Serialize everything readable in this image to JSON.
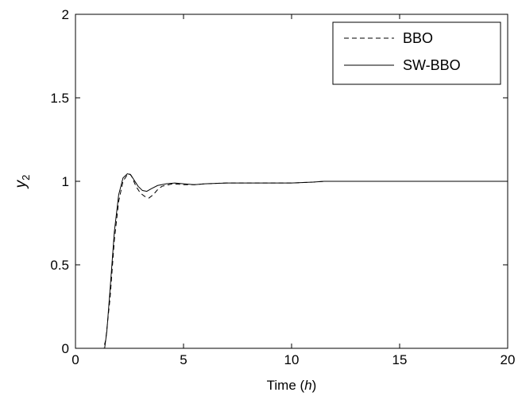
{
  "chart_data": {
    "type": "line",
    "title": "",
    "xlabel": "Time (h)",
    "xlabel_main": "Time (",
    "xlabel_var": "h",
    "xlabel_close": ")",
    "ylabel": "y2",
    "ylabel_var": "y",
    "ylabel_sub": "2",
    "xlim": [
      0,
      20
    ],
    "ylim": [
      0,
      2
    ],
    "xticks": [
      0,
      5,
      10,
      15,
      20
    ],
    "xtick_labels": [
      "0",
      "5",
      "10",
      "15",
      "20"
    ],
    "yticks": [
      0,
      0.5,
      1,
      1.5,
      2
    ],
    "ytick_labels": [
      "0",
      "0.5",
      "1",
      "1.5",
      "2"
    ],
    "grid": false,
    "legend_position": "top-right",
    "series": [
      {
        "name": "BBO",
        "style": "dashed",
        "color": "#000000",
        "x": [
          0,
          1.3,
          1.4,
          1.6,
          1.8,
          2.0,
          2.2,
          2.4,
          2.5,
          2.6,
          2.7,
          2.8,
          3.0,
          3.2,
          3.4,
          3.6,
          3.8,
          4.0,
          4.5,
          5.0,
          5.5,
          6.0,
          7.0,
          8.0,
          9.0,
          10.0,
          11.0,
          11.5,
          12.0,
          14.0,
          16.0,
          18.0,
          20.0
        ],
        "values": [
          0,
          0,
          0.05,
          0.3,
          0.65,
          0.88,
          1.0,
          1.04,
          1.045,
          1.03,
          1.0,
          0.97,
          0.93,
          0.91,
          0.9,
          0.92,
          0.95,
          0.97,
          0.985,
          0.98,
          0.98,
          0.985,
          0.99,
          0.99,
          0.99,
          0.99,
          0.995,
          1.0,
          1.0,
          1.0,
          1.0,
          1.0,
          1.0
        ]
      },
      {
        "name": "SW-BBO",
        "style": "solid",
        "color": "#000000",
        "x": [
          0,
          1.35,
          1.45,
          1.6,
          1.8,
          2.0,
          2.2,
          2.4,
          2.55,
          2.7,
          2.9,
          3.1,
          3.3,
          3.5,
          3.8,
          4.2,
          4.6,
          5.0,
          5.5,
          6.0,
          7.0,
          8.0,
          9.0,
          10.0,
          11.0,
          11.5,
          12.0,
          14.0,
          16.0,
          18.0,
          20.0
        ],
        "values": [
          0,
          0,
          0.1,
          0.35,
          0.7,
          0.92,
          1.02,
          1.045,
          1.04,
          1.01,
          0.97,
          0.945,
          0.94,
          0.955,
          0.975,
          0.985,
          0.99,
          0.985,
          0.98,
          0.985,
          0.99,
          0.99,
          0.99,
          0.99,
          0.995,
          1.0,
          1.0,
          1.0,
          1.0,
          1.0,
          1.0
        ]
      }
    ]
  }
}
